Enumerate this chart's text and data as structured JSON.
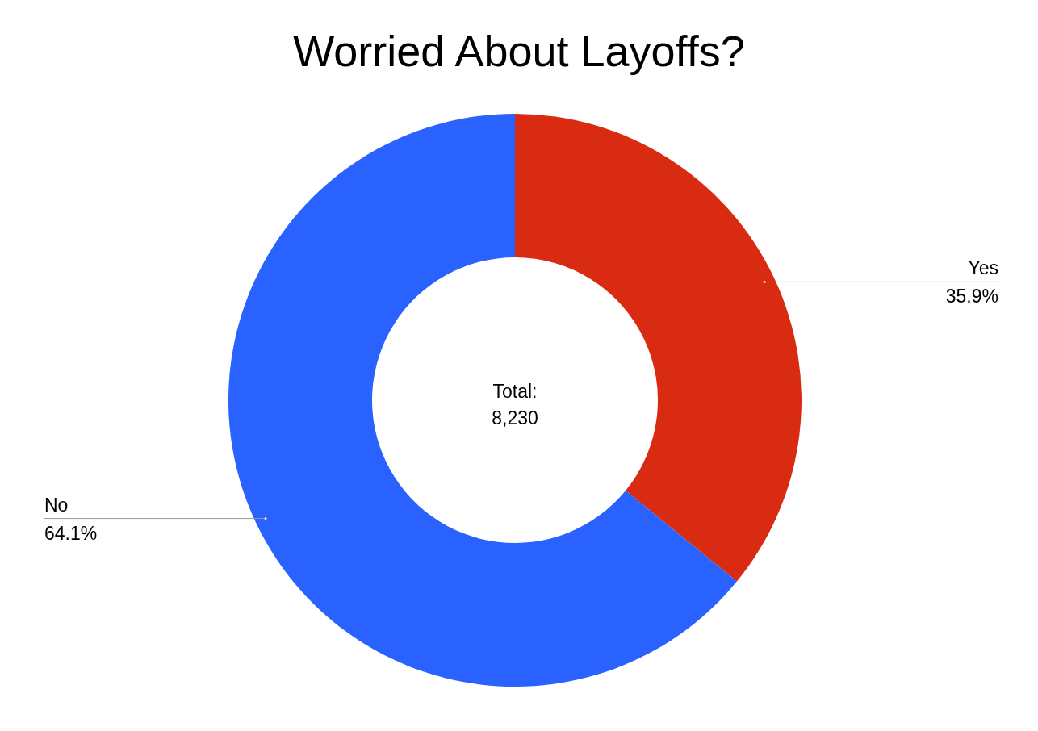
{
  "chart_data": {
    "type": "donut",
    "title": "Worried About Layoffs?",
    "categories": [
      "Yes",
      "No"
    ],
    "values": [
      35.9,
      64.1
    ],
    "value_labels": [
      "35.9%",
      "64.1%"
    ],
    "colors": [
      "#d92b12",
      "#2962ff"
    ],
    "annotations": [
      "Total:\n8,230"
    ]
  }
}
